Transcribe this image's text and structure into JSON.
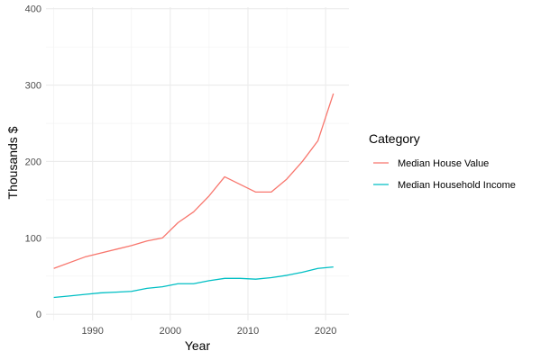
{
  "chart_data": {
    "type": "line",
    "xlabel": "Year",
    "ylabel": "Thousands $",
    "xlim": [
      1984,
      2023
    ],
    "ylim": [
      -8,
      402
    ],
    "x_ticks": [
      1990,
      2000,
      2010,
      2020
    ],
    "x_tick_labels": [
      "1990",
      "2000",
      "2010",
      "2020"
    ],
    "y_ticks": [
      0,
      100,
      200,
      300,
      400
    ],
    "y_tick_labels": [
      "0",
      "100",
      "200",
      "300",
      "400"
    ],
    "grid": true,
    "legend": {
      "title": "Category",
      "placement": "right"
    },
    "series": [
      {
        "name": "Median House Value",
        "color": "#F8766D",
        "points": [
          [
            1985,
            60
          ],
          [
            1989,
            75
          ],
          [
            1993,
            85
          ],
          [
            1995,
            90
          ],
          [
            1997,
            96
          ],
          [
            1999,
            100
          ],
          [
            2001,
            120
          ],
          [
            2003,
            134
          ],
          [
            2005,
            155
          ],
          [
            2007,
            180
          ],
          [
            2009,
            170
          ],
          [
            2011,
            160
          ],
          [
            2013,
            160
          ],
          [
            2015,
            177
          ],
          [
            2017,
            200
          ],
          [
            2019,
            227
          ],
          [
            2021,
            289
          ]
        ]
      },
      {
        "name": "Median Household Income",
        "color": "#00BFC4",
        "points": [
          [
            1985,
            22
          ],
          [
            1987,
            24
          ],
          [
            1989,
            26
          ],
          [
            1991,
            28
          ],
          [
            1993,
            29
          ],
          [
            1995,
            30
          ],
          [
            1997,
            34
          ],
          [
            1999,
            36
          ],
          [
            2001,
            40
          ],
          [
            2003,
            40
          ],
          [
            2005,
            44
          ],
          [
            2007,
            47
          ],
          [
            2009,
            47
          ],
          [
            2011,
            46
          ],
          [
            2013,
            48
          ],
          [
            2015,
            51
          ],
          [
            2017,
            55
          ],
          [
            2019,
            60
          ],
          [
            2021,
            62
          ]
        ]
      }
    ]
  }
}
